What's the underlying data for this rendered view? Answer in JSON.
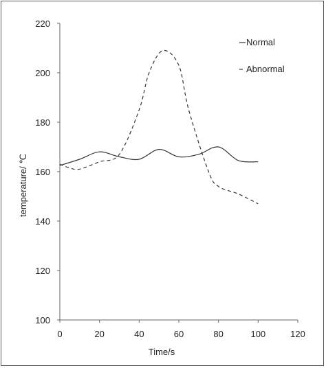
{
  "chart_data": {
    "type": "line",
    "xlabel": "Time/s",
    "ylabel": "temperature/ ℃",
    "xlim": [
      0,
      120
    ],
    "ylim": [
      100,
      220
    ],
    "xticks": [
      0,
      20,
      40,
      60,
      80,
      100,
      120
    ],
    "yticks": [
      100,
      120,
      140,
      160,
      180,
      200,
      220
    ],
    "grid": false,
    "legend_position": "top-right",
    "series": [
      {
        "name": "Normal",
        "style": "solid",
        "color": "#333333",
        "x": [
          0,
          10,
          20,
          30,
          40,
          50,
          60,
          70,
          80,
          90,
          100
        ],
        "y": [
          162.5,
          165,
          168,
          166,
          165,
          169,
          166,
          167,
          170,
          164.5,
          164
        ]
      },
      {
        "name": "Abnormal",
        "style": "dashed",
        "color": "#333333",
        "x": [
          0,
          5,
          10,
          20,
          30,
          40,
          45,
          52,
          60,
          65,
          75,
          80,
          90,
          100
        ],
        "y": [
          163,
          161.5,
          161,
          164,
          167,
          185,
          200,
          209,
          203,
          185,
          160,
          154,
          151,
          147
        ]
      }
    ]
  }
}
